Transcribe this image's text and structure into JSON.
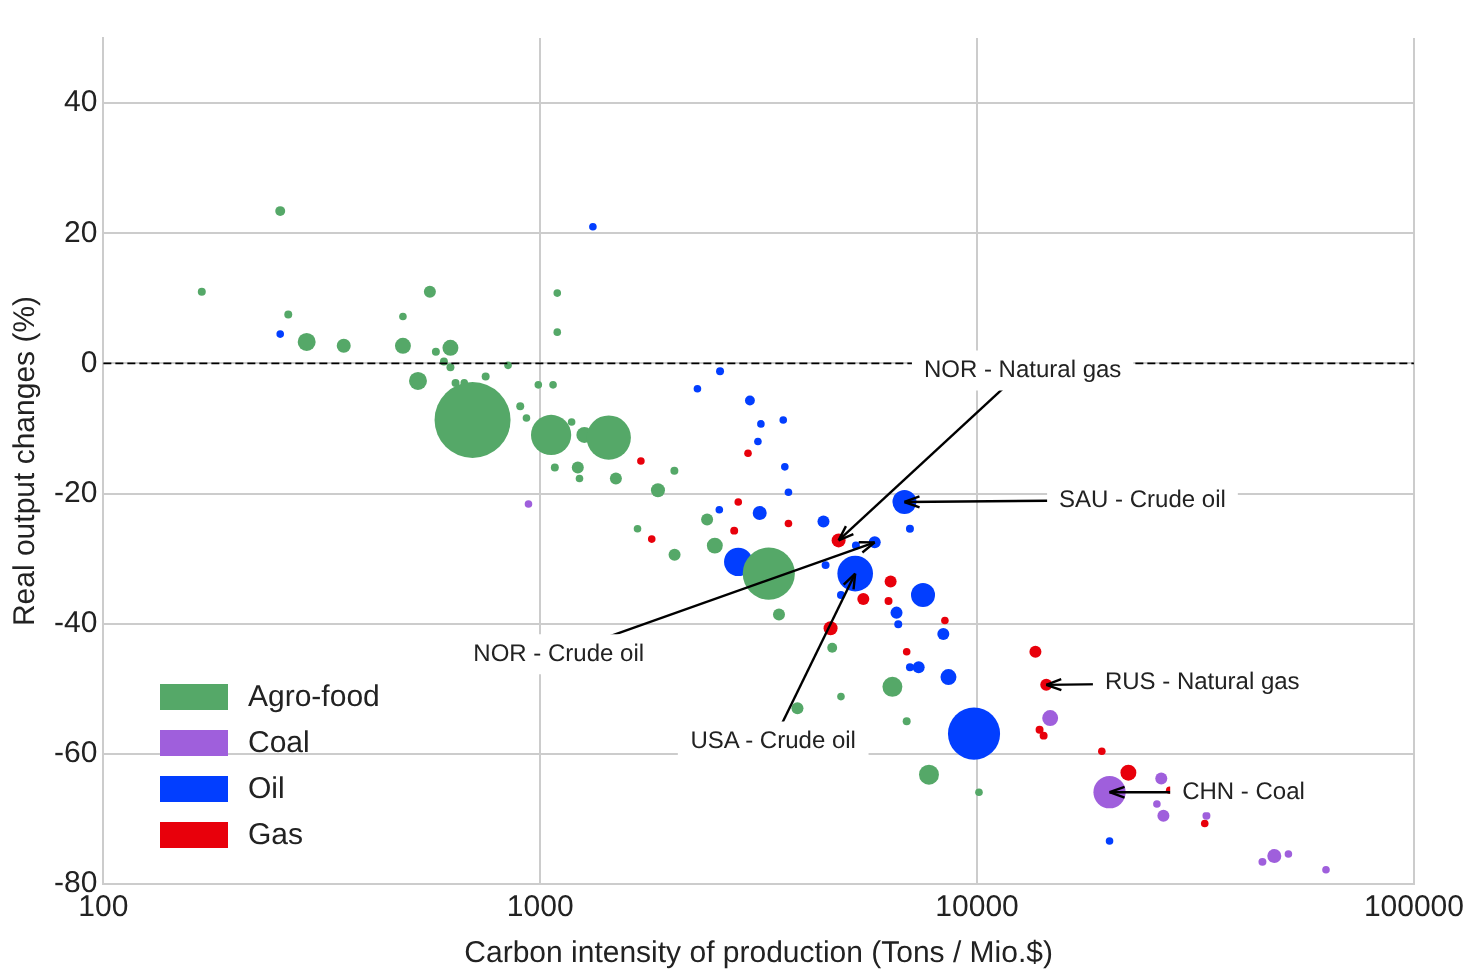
{
  "chart_data": {
    "type": "bubble",
    "xlabel": "Carbon intensity of production (Tons / Mio.$)",
    "ylabel": "Real output changes (%)",
    "log": "x",
    "xlim": [
      100,
      100000
    ],
    "xticks": [
      100,
      1000,
      10000,
      100000
    ],
    "ylim": [
      -80,
      50
    ],
    "yticks": [
      -80,
      -60,
      -40,
      -20,
      0,
      20,
      40
    ],
    "grid": true,
    "legend": "bottom left",
    "marker": "circle",
    "series": [
      {
        "name": "Agro-food",
        "color": "#55a868",
        "x": [
          254,
          168,
          265,
          292,
          355,
          485,
          485,
          525,
          559,
          623,
          577,
          602,
          623,
          640,
          750,
          670,
          844,
          990,
          1070,
          900,
          930,
          700,
          1059,
          1180,
          1262,
          1435,
          1094,
          1094,
          1080,
          1219,
          1230,
          1490,
          2028,
          1860,
          2410,
          1670,
          2510,
          2030,
          3336,
          3520,
          4660,
          3880,
          4880,
          6400,
          6900,
          7760,
          10100
        ],
        "values": [
          23.4,
          11,
          7.5,
          3.3,
          2.7,
          2.7,
          7.2,
          -2.7,
          11,
          2.4,
          1.8,
          0.3,
          -0.6,
          -3,
          -2,
          -3,
          -0.3,
          -3.3,
          -3.3,
          -6.6,
          -8.4,
          -8.7,
          -11,
          -9,
          -11,
          -11.4,
          10.8,
          4.8,
          -16,
          -16,
          -17.7,
          -17.7,
          -16.5,
          -19.5,
          -24,
          -25.4,
          -28,
          -29.4,
          -32.3,
          -38.6,
          -43.7,
          -53,
          -51.2,
          -49.7,
          -55,
          -63.2,
          -65.9
        ],
        "sizes": [
          0.017,
          0.011,
          0.011,
          0.056,
          0.034,
          0.044,
          0.01,
          0.056,
          0.025,
          0.044,
          0.011,
          0.011,
          0.011,
          0.011,
          0.011,
          0.01,
          0.01,
          0.01,
          0.01,
          0.011,
          0.01,
          1,
          0.28,
          0.01,
          0.044,
          0.34,
          0.01,
          0.01,
          0.011,
          0.025,
          0.01,
          0.025,
          0.011,
          0.034,
          0.025,
          0.01,
          0.044,
          0.025,
          0.47,
          0.025,
          0.017,
          0.025,
          0.01,
          0.069,
          0.011,
          0.069,
          0.01
        ]
      },
      {
        "name": "Coal",
        "color": "#9f5fdc",
        "x": [
          940,
          14700,
          20100,
          26400,
          26700,
          25800,
          33500,
          47900,
          45000,
          51600,
          62900
        ],
        "values": [
          -21.6,
          -54.5,
          -65.9,
          -63.8,
          -69.5,
          -67.7,
          -69.5,
          -75.7,
          -76.6,
          -75.4,
          -77.8
        ],
        "sizes": [
          0.01,
          0.044,
          0.18,
          0.025,
          0.025,
          0.01,
          0.011,
          0.034,
          0.011,
          0.01,
          0.01
        ]
      },
      {
        "name": "Oil",
        "color": "#023eff",
        "x": [
          1320,
          254,
          2580,
          2290,
          3020,
          3200,
          3600,
          3150,
          3630,
          3700,
          3180,
          2570,
          4450,
          6820,
          7020,
          5830,
          5280,
          5260,
          4500,
          4880,
          7520,
          6540,
          6600,
          8370,
          7020,
          7350,
          8600,
          9840,
          20100,
          2840
        ],
        "values": [
          21,
          4.5,
          -1.2,
          -3.9,
          -5.7,
          -9.3,
          -8.7,
          -12,
          -15.9,
          -19.8,
          -23,
          -22.5,
          -24.3,
          -21.3,
          -25.4,
          -27.5,
          -28,
          -32.3,
          -31,
          -35.6,
          -35.6,
          -38.3,
          -40.1,
          -41.6,
          -46.7,
          -46.7,
          -48.2,
          -56.9,
          -73.4,
          -30.5
        ],
        "sizes": [
          0.01,
          0.01,
          0.011,
          0.01,
          0.017,
          0.01,
          0.01,
          0.01,
          0.01,
          0.01,
          0.034,
          0.01,
          0.025,
          0.1,
          0.011,
          0.025,
          0.011,
          0.22,
          0.011,
          0.011,
          0.1,
          0.025,
          0.011,
          0.025,
          0.011,
          0.025,
          0.044,
          0.47,
          0.01,
          0.14
        ]
      },
      {
        "name": "Gas",
        "color": "#e8000b",
        "x": [
          1700,
          2990,
          2840,
          3700,
          2780,
          1800,
          4820,
          6340,
          6270,
          5490,
          4620,
          8440,
          6900,
          13600,
          14400,
          13900,
          14200,
          19300,
          22200,
          27600,
          33200
        ],
        "values": [
          -15,
          -13.8,
          -21.3,
          -24.6,
          -25.7,
          -27,
          -27.2,
          -33.5,
          -36.5,
          -36.2,
          -40.7,
          -39.5,
          -44.3,
          -44.3,
          -49.4,
          -56.3,
          -57.2,
          -59.6,
          -62.9,
          -65.6,
          -70.7
        ],
        "sizes": [
          0.01,
          0.01,
          0.01,
          0.01,
          0.011,
          0.01,
          0.034,
          0.025,
          0.011,
          0.025,
          0.034,
          0.01,
          0.01,
          0.025,
          0.025,
          0.011,
          0.011,
          0.01,
          0.044,
          0.01,
          0.01
        ]
      }
    ],
    "ref_lines": [
      {
        "axis": "y",
        "value": 0,
        "color": "#000000",
        "line_style": "dashed"
      }
    ],
    "annotations": [
      {
        "text": "NOR - Natural gas",
        "x": 4820,
        "y": -27.2
      },
      {
        "text": "SAU - Crude oil",
        "x": 6820,
        "y": -21.3
      },
      {
        "text": "NOR - Crude oil",
        "x": 5830,
        "y": -27.5
      },
      {
        "text": "USA - Crude oil",
        "x": 5260,
        "y": -32.3
      },
      {
        "text": "RUS - Natural gas",
        "x": 14400,
        "y": -49.4
      },
      {
        "text": "CHN - Coal",
        "x": 20100,
        "y": -65.9
      }
    ]
  }
}
